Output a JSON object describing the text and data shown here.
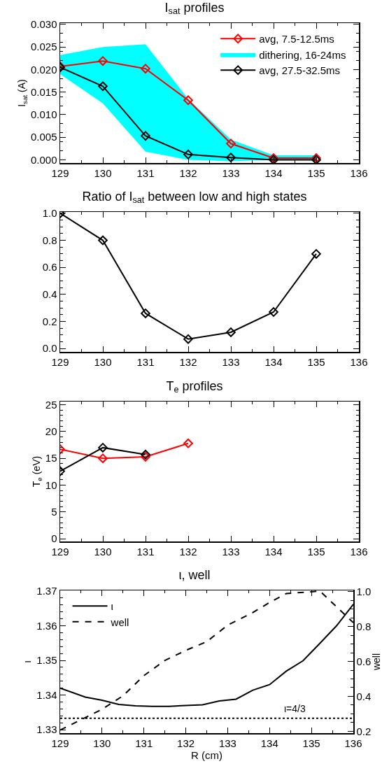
{
  "chart_data": [
    {
      "type": "line",
      "title": "I$_{sat}$ profiles",
      "ylabel": "I$_{sat}$ (A)",
      "x": [
        129,
        130,
        131,
        132,
        133,
        134,
        135
      ],
      "xlim": [
        129,
        136
      ],
      "xticks": [
        129,
        130,
        131,
        132,
        133,
        134,
        135,
        136
      ],
      "ylim": [
        -0.0007,
        0.0303
      ],
      "yticks": [
        {
          "value": 0,
          "label": "0.000"
        },
        {
          "value": 0.005,
          "label": "0.005"
        },
        {
          "value": 0.01,
          "label": "0.010"
        },
        {
          "value": 0.015,
          "label": "0.015"
        },
        {
          "value": 0.02,
          "label": "0.020"
        },
        {
          "value": 0.025,
          "label": "0.025"
        },
        {
          "value": 0.03,
          "label": "0.030"
        }
      ],
      "grid": false,
      "legend": "top right",
      "marker": "diamond",
      "series": [
        {
          "name": "avg, 7.5-12.5ms",
          "color": "#ff0000",
          "values": [
            0.0207,
            0.0219,
            0.0202,
            0.0132,
            0.0036,
            0.0004,
            0.0004
          ]
        },
        {
          "name": "dithering, 16-24ms",
          "type": "area",
          "color": "#00ffff",
          "values": [
            null,
            null,
            null,
            null,
            null,
            null,
            null
          ],
          "lower": [
            0.019,
            0.0125,
            0.0018,
            0.0,
            -0.0003,
            0.0,
            0.0
          ],
          "upper": [
            0.0232,
            0.025,
            0.0256,
            0.0135,
            0.0045,
            0.001,
            0.001
          ]
        },
        {
          "name": "avg, 27.5-32.5ms",
          "color": "#000000",
          "values": [
            0.0205,
            0.0163,
            0.0053,
            0.0012,
            0.0005,
            0.0,
            0.0
          ]
        }
      ]
    },
    {
      "type": "line",
      "title": "Ratio of I$_{sat}$ between low and high states",
      "x": [
        129,
        130,
        131,
        132,
        133,
        134,
        135
      ],
      "xlim": [
        129,
        136
      ],
      "xticks": [
        129,
        130,
        131,
        132,
        133,
        134,
        135,
        136
      ],
      "ylim": [
        -0.025,
        1.01
      ],
      "yticks": [
        {
          "value": 0,
          "label": "0.0"
        },
        {
          "value": 0.2,
          "label": "0.2"
        },
        {
          "value": 0.4,
          "label": "0.4"
        },
        {
          "value": 0.6,
          "label": "0.6"
        },
        {
          "value": 0.8,
          "label": "0.8"
        },
        {
          "value": 1,
          "label": "1.0"
        }
      ],
      "grid": false,
      "legend": false,
      "marker": "diamond",
      "series": [
        {
          "color": "#000000",
          "values": [
            1.0,
            0.8,
            0.26,
            0.07,
            0.12,
            0.27,
            0.7
          ]
        }
      ]
    },
    {
      "type": "line",
      "title": "T$_{e}$ profiles",
      "ylabel": "T$_{e}$ (eV)",
      "x": [
        129,
        130,
        131,
        132
      ],
      "xlim": [
        129,
        136
      ],
      "xticks": [
        129,
        130,
        131,
        132,
        133,
        134,
        135,
        136
      ],
      "ylim": [
        -0.5,
        25.6
      ],
      "yticks": [
        0,
        5,
        10,
        15,
        20,
        25
      ],
      "grid": false,
      "legend": false,
      "marker": "diamond",
      "series": [
        {
          "color": "#ff0000",
          "values": [
            16.7,
            15.0,
            15.3,
            17.8
          ]
        },
        {
          "color": "#000000",
          "values": [
            12.6,
            17.0,
            15.7,
            null
          ]
        }
      ]
    },
    {
      "type": "line",
      "title": "ι, well",
      "xlabel": "R (cm)",
      "ylabel": "ι",
      "y2label": "well",
      "xlim": [
        129,
        136
      ],
      "xticks": [
        129,
        130,
        131,
        132,
        133,
        134,
        135,
        136
      ],
      "ylim": [
        1.329,
        1.3702
      ],
      "yticks": [
        {
          "value": 1.33,
          "label": "1.33"
        },
        {
          "value": 1.34,
          "label": "1.34"
        },
        {
          "value": 1.35,
          "label": "1.35"
        },
        {
          "value": 1.36,
          "label": "1.36"
        },
        {
          "value": 1.37,
          "label": "1.37"
        }
      ],
      "y2lim": [
        0.189,
        1.008
      ],
      "y2ticks": [
        {
          "value": 0.2,
          "label": "0.2"
        },
        {
          "value": 0.4,
          "label": "0.4"
        },
        {
          "value": 0.6,
          "label": "0.6"
        },
        {
          "value": 0.8,
          "label": "0.8"
        },
        {
          "value": 1,
          "label": "1.0"
        }
      ],
      "grid": false,
      "legend": "top left",
      "marker": "none",
      "annotations": [
        "ι=4/3"
      ],
      "ref_lines": [
        {
          "axis": "y",
          "value": 1.3333,
          "line_style": "dotted",
          "color": "#000000"
        }
      ],
      "series": [
        {
          "name": "ι",
          "color": "#000000",
          "line_style": "solid",
          "x": [
            129,
            129.6,
            130,
            130.4,
            130.8,
            131.2,
            131.6,
            132,
            132.4,
            132.8,
            133.2,
            133.6,
            134,
            134.4,
            134.8,
            135.2,
            135.6,
            136
          ],
          "values": [
            1.342,
            1.3394,
            1.3385,
            1.3373,
            1.3369,
            1.3367,
            1.3367,
            1.337,
            1.3372,
            1.3383,
            1.3388,
            1.3414,
            1.343,
            1.3469,
            1.3499,
            1.3549,
            1.36,
            1.3662
          ]
        },
        {
          "name": "well",
          "color": "#000000",
          "line_style": "dashed",
          "axis": "y2",
          "x": [
            129,
            130,
            130.5,
            131,
            131.5,
            132,
            132.5,
            133,
            133.6,
            134,
            134.4,
            135,
            135.2,
            136
          ],
          "values": [
            0.207,
            0.326,
            0.403,
            0.519,
            0.606,
            0.664,
            0.714,
            0.809,
            0.881,
            0.939,
            0.99,
            1.0,
            1.005,
            0.823
          ]
        }
      ]
    }
  ]
}
